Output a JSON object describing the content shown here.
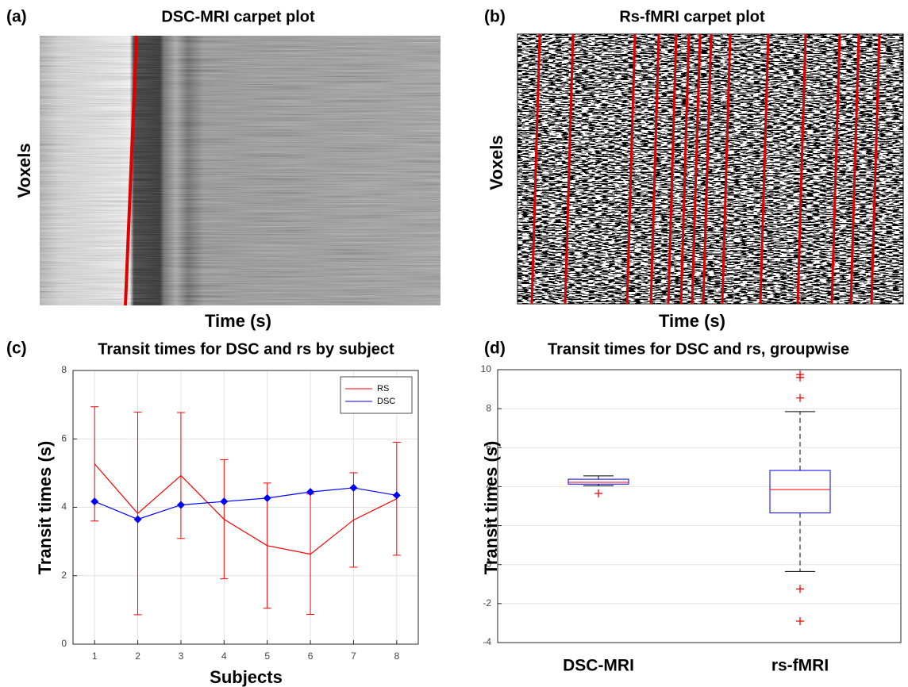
{
  "chart_data": [
    {
      "type": "carpet",
      "panel_label": "(a)",
      "title": "DSC-MRI carpet plot",
      "xlabel": "Time (s)",
      "ylabel": "Voxels"
    },
    {
      "type": "carpet",
      "panel_label": "(b)",
      "title": "Rs-fMRI carpet plot",
      "xlabel": "Time (s)",
      "ylabel": "Voxels"
    },
    {
      "type": "line",
      "panel_label": "(c)",
      "title": "Transit times for DSC and rs by subject",
      "xlabel": "Subjects",
      "ylabel": "Transit times (s)",
      "x": [
        1,
        2,
        3,
        4,
        5,
        6,
        7,
        8
      ],
      "xlim": [
        0.5,
        8.5
      ],
      "xticks": [
        1,
        2,
        3,
        4,
        5,
        6,
        7,
        8
      ],
      "ylim": [
        0,
        8
      ],
      "yticks": [
        0,
        2,
        4,
        6,
        8
      ],
      "grid": true,
      "legend": "upper right",
      "series": [
        {
          "name": "RS",
          "color": "#ff0000",
          "values": [
            5.27,
            3.82,
            4.93,
            3.65,
            2.88,
            2.63,
            3.63,
            4.25
          ],
          "errors": [
            1.67,
            2.96,
            1.84,
            1.74,
            1.83,
            1.76,
            1.38,
            1.65
          ]
        },
        {
          "name": "DSC",
          "color": "#0000ff",
          "marker": "diamond",
          "values": [
            4.17,
            3.65,
            4.07,
            4.17,
            4.27,
            4.45,
            4.57,
            4.35
          ]
        }
      ]
    },
    {
      "type": "box",
      "panel_label": "(d)",
      "title": "Transit times for DSC and rs, groupwise",
      "ylabel": "Transit times (s)",
      "categories": [
        "DSC-MRI",
        "rs-fMRI"
      ],
      "ylim": [
        -4,
        10
      ],
      "yticks": [
        -4,
        -2,
        0,
        2,
        4,
        6,
        8,
        10
      ],
      "grid": true,
      "box_color": "#0000ff",
      "median_color": "#ff0000",
      "outlier_color": "#ff0000",
      "boxes": [
        {
          "whisker_low": 4.05,
          "q1": 4.13,
          "median": 4.22,
          "q3": 4.38,
          "whisker_high": 4.55,
          "outliers": [
            3.65
          ]
        },
        {
          "whisker_low": -0.35,
          "q1": 2.65,
          "median": 3.85,
          "q3": 4.83,
          "whisker_high": 7.85,
          "outliers": [
            9.75,
            9.6,
            8.55,
            -1.25,
            -2.9
          ]
        }
      ]
    }
  ]
}
